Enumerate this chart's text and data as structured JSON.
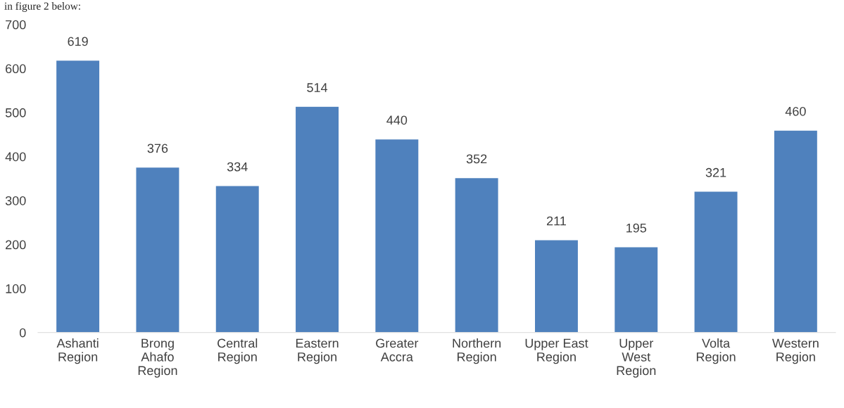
{
  "chart_data": {
    "type": "bar",
    "categories": [
      "Ashanti\nRegion",
      "Brong\nAhafo\nRegion",
      "Central\nRegion",
      "Eastern\nRegion",
      "Greater\nAccra",
      "Northern\nRegion",
      "Upper East\nRegion",
      "Upper\nWest\nRegion",
      "Volta\nRegion",
      "Western\nRegion"
    ],
    "values": [
      619,
      376,
      334,
      514,
      440,
      352,
      211,
      195,
      321,
      460
    ],
    "color": "#4f81bd",
    "ylim": [
      0,
      700
    ],
    "yticks": [
      0,
      100,
      200,
      300,
      400,
      500,
      600,
      700
    ],
    "data_labels": true,
    "grid": false,
    "legend": false,
    "annotations": [
      "in figure 2 below:"
    ]
  }
}
